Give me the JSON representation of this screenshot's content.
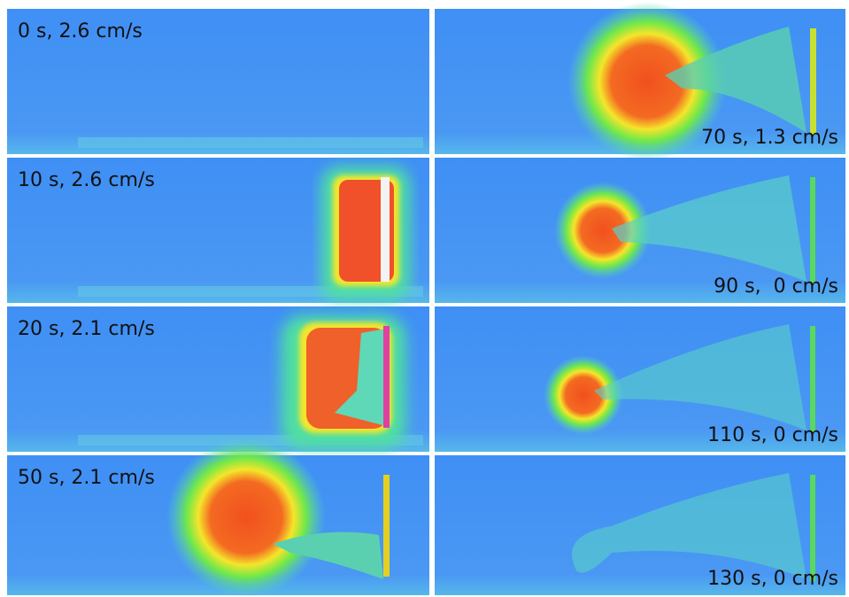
{
  "panels": [
    {
      "label": "0 s, 2.6 cm/s"
    },
    {
      "label": "10 s, 2.6 cm/s"
    },
    {
      "label": "20 s, 2.1 cm/s"
    },
    {
      "label": "50 s, 2.1 cm/s"
    },
    {
      "label": "70 s, 1.3 cm/s"
    },
    {
      "label": "90 s,  0 cm/s"
    },
    {
      "label": "110 s, 0 cm/s"
    },
    {
      "label": "130 s, 0 cm/s"
    }
  ]
}
